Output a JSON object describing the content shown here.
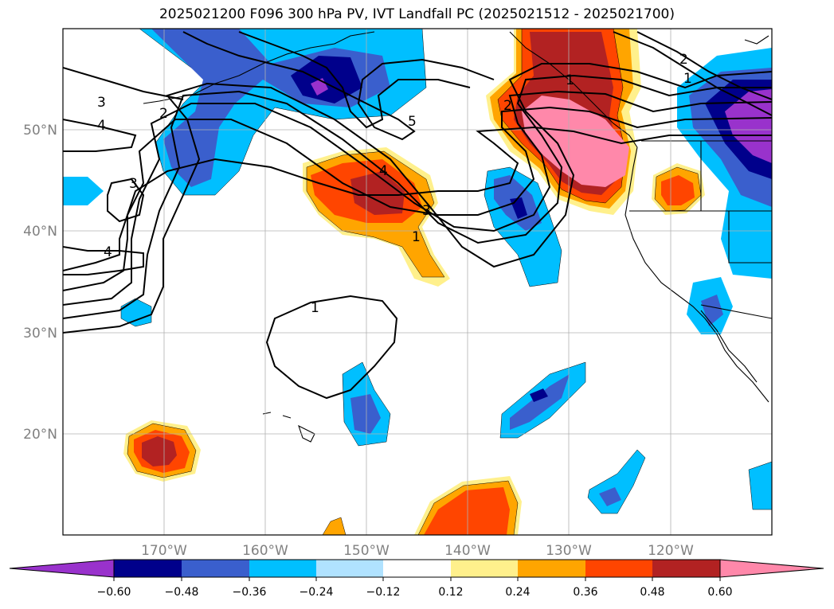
{
  "title": "2025021200 F096 300 hPa PV, IVT Landfall PC (2025021512 - 2025021700)",
  "lat_labels": [
    "50°N",
    "40°N",
    "30°N",
    "20°N"
  ],
  "lon_labels": [
    "170°W",
    "160°W",
    "150°W",
    "140°W",
    "130°W",
    "120°W"
  ],
  "colorbar": {
    "ticks": [
      "−0.60",
      "−0.48",
      "−0.36",
      "−0.24",
      "−0.12",
      "0.12",
      "0.24",
      "0.36",
      "0.48",
      "0.60"
    ],
    "colors": [
      "#9932cc",
      "#00008b",
      "#3a5fcd",
      "#00bfff",
      "#b0e2ff",
      "#ffffff",
      "#fff08c",
      "#ffa500",
      "#ff4500",
      "#b22222",
      "#ff88aa"
    ]
  },
  "pv_contour_labels": [
    "3",
    "4",
    "2",
    "3",
    "4",
    "5",
    "4",
    "3",
    "1",
    "2",
    "1",
    "2",
    "1",
    "1"
  ],
  "map": {
    "lon_range": [
      "180°W",
      "110°W"
    ],
    "lat_range": [
      "10°N",
      "60°N"
    ],
    "grid": true
  }
}
